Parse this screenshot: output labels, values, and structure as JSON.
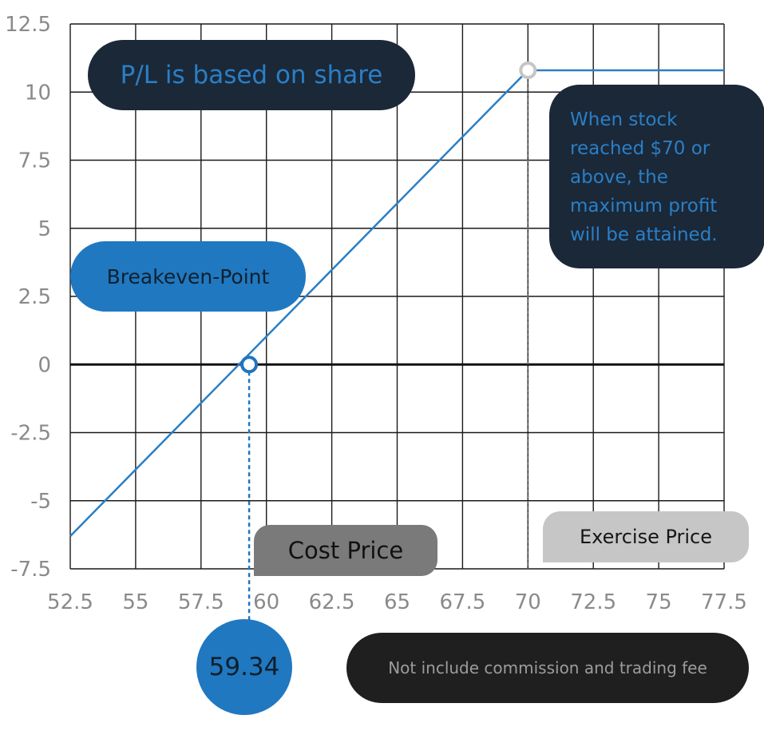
{
  "chart_data": {
    "type": "line",
    "title": "",
    "xlabel": "",
    "ylabel": "",
    "xlim": [
      52.5,
      77.5
    ],
    "ylim": [
      -7.5,
      12.5
    ],
    "x_ticks": [
      "52.5",
      "55",
      "57.5",
      "60",
      "62.5",
      "65",
      "67.5",
      "70",
      "72.5",
      "75",
      "77.5"
    ],
    "y_ticks": [
      "12.5",
      "10",
      "7.5",
      "5",
      "2.5",
      "0",
      "-2.5",
      "-5",
      "-7.5"
    ],
    "grid": true,
    "series": [
      {
        "name": "",
        "color": "#2a7fc6",
        "points": [
          {
            "x": 52.5,
            "y": -6.3
          },
          {
            "x": 70,
            "y": 10.8
          },
          {
            "x": 77.5,
            "y": 10.8
          }
        ]
      }
    ],
    "markers": [
      {
        "x": 59.34,
        "y": 0,
        "color": "#1f75bd",
        "label": "Breakeven-Point"
      },
      {
        "x": 70,
        "y": 10.8,
        "color": "#c6c6c6",
        "label": "Exercise Price"
      }
    ],
    "annotations": {
      "pl_note": "P/L is based on share",
      "max_profit_lines": [
        "When stock",
        "reached $70 or",
        "above, the",
        "maximum profit",
        "will be attained."
      ],
      "breakeven_label": "Breakeven-Point",
      "cost_price_label": "Cost Price",
      "exercise_price_label": "Exercise Price",
      "cost_price_value": "59.34",
      "fee_note": "Not include commission and trading fee"
    }
  },
  "colors": {
    "line": "#2a7fc6",
    "grid": "#1a1a1a",
    "zero_line": "#111111",
    "dark_callout": "#1b2838",
    "blue_callout": "#2078c0"
  }
}
